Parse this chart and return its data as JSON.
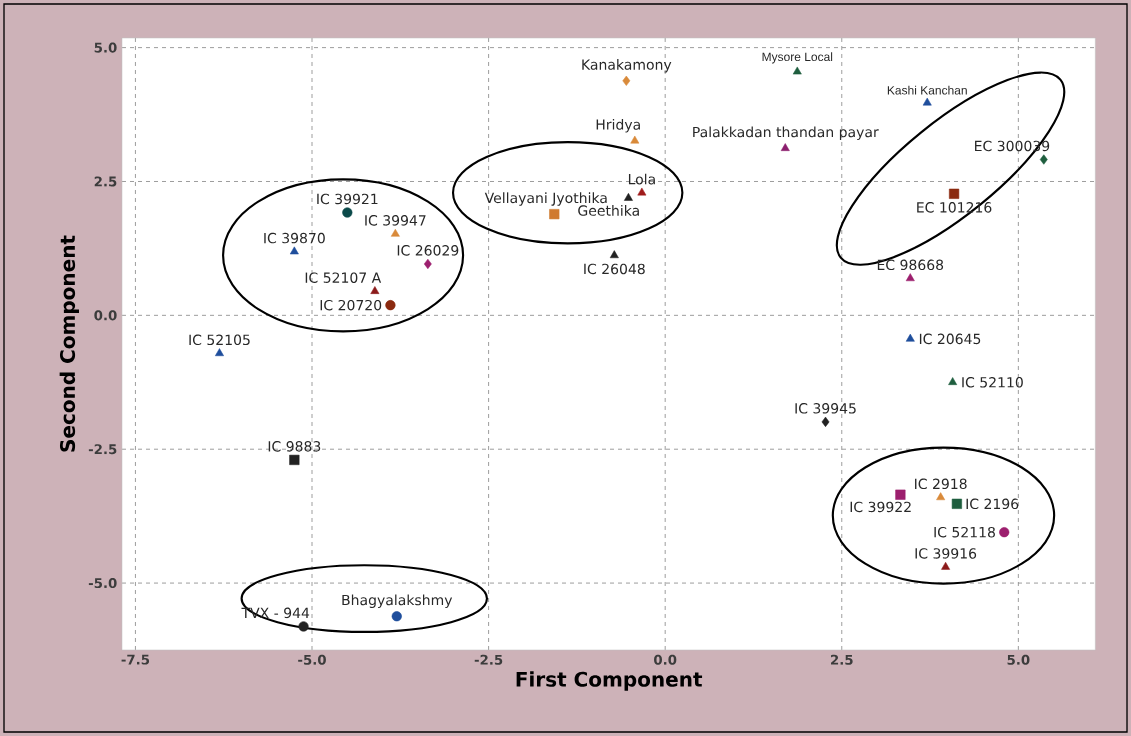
{
  "chart_data": {
    "type": "scatter",
    "xlabel": "First Component",
    "ylabel": "Second Component",
    "xlim": [
      -7.69,
      6.09
    ],
    "ylim": [
      -6.25,
      5.18
    ],
    "xticks": [
      {
        "value": -7.5,
        "label": "-7.5"
      },
      {
        "value": -5,
        "label": "-5.0"
      },
      {
        "value": -2.5,
        "label": "-2.5"
      },
      {
        "value": 0,
        "label": "0.0"
      },
      {
        "value": 2.5,
        "label": "2.5"
      },
      {
        "value": 5,
        "label": "5.0"
      }
    ],
    "yticks": [
      {
        "value": -5,
        "label": "-5.0"
      },
      {
        "value": -2.5,
        "label": "-2.5"
      },
      {
        "value": 0,
        "label": "0.0"
      },
      {
        "value": 2.5,
        "label": "2.5"
      },
      {
        "value": 5,
        "label": "5.0"
      }
    ],
    "grid": true,
    "series": [
      {
        "name": "Kanakamony",
        "x": [
          -0.55
        ],
        "values": [
          4.38
        ],
        "marker": "diamond",
        "color": "#d98a3a"
      },
      {
        "name": "Hridya",
        "x": [
          -0.43
        ],
        "values": [
          3.26
        ],
        "marker": "triangle",
        "color": "#d98a3a"
      },
      {
        "name": "Lola",
        "x": [
          -0.33
        ],
        "values": [
          2.29
        ],
        "marker": "triangle",
        "color": "#a01c1c"
      },
      {
        "name": "Geethika",
        "x": [
          -0.52
        ],
        "values": [
          2.19
        ],
        "marker": "triangle",
        "color": "#222222"
      },
      {
        "name": "Vellayani Jyothika",
        "x": [
          -1.57
        ],
        "values": [
          1.89
        ],
        "marker": "square",
        "color": "#d07a30"
      },
      {
        "name": "IC 26048",
        "x": [
          -0.72
        ],
        "values": [
          1.12
        ],
        "marker": "triangle",
        "color": "#222222"
      },
      {
        "name": "IC 39921",
        "x": [
          -4.5
        ],
        "values": [
          1.92
        ],
        "marker": "circle",
        "color": "#0b4a4a"
      },
      {
        "name": "IC 39947",
        "x": [
          -3.82
        ],
        "values": [
          1.52
        ],
        "marker": "triangle",
        "color": "#d98a3a"
      },
      {
        "name": "IC 39870",
        "x": [
          -5.25
        ],
        "values": [
          1.19
        ],
        "marker": "triangle",
        "color": "#1f4e9c"
      },
      {
        "name": "IC 26029",
        "x": [
          -3.36
        ],
        "values": [
          0.96
        ],
        "marker": "diamond",
        "color": "#9c1f6e"
      },
      {
        "name": "IC 52107 A",
        "x": [
          -4.11
        ],
        "values": [
          0.45
        ],
        "marker": "triangle",
        "color": "#8b1a1a"
      },
      {
        "name": "IC 20720",
        "x": [
          -3.89
        ],
        "values": [
          0.19
        ],
        "marker": "circle",
        "color": "#8b2a10"
      },
      {
        "name": "IC 52105",
        "x": [
          -6.31
        ],
        "values": [
          -0.71
        ],
        "marker": "triangle",
        "color": "#1f4e9c"
      },
      {
        "name": "IC 9883",
        "x": [
          -5.25
        ],
        "values": [
          -2.7
        ],
        "marker": "square",
        "color": "#222222"
      },
      {
        "name": "TVX - 944",
        "x": [
          -5.12
        ],
        "values": [
          -5.81
        ],
        "marker": "circle",
        "color": "#222222"
      },
      {
        "name": "Bhagyalakshmy",
        "x": [
          -3.8
        ],
        "values": [
          -5.62
        ],
        "marker": "circle",
        "color": "#1f4e9c"
      },
      {
        "name": "Mysore Local",
        "x": [
          1.87
        ],
        "values": [
          4.55
        ],
        "marker": "triangle",
        "color": "#1e5e3e"
      },
      {
        "name": "Kashi Kanchan",
        "x": [
          3.71
        ],
        "values": [
          3.97
        ],
        "marker": "triangle",
        "color": "#1f4e9c"
      },
      {
        "name": "Palakkadan thandan payar",
        "x": [
          1.7
        ],
        "values": [
          3.12
        ],
        "marker": "triangle",
        "color": "#8b1f6e"
      },
      {
        "name": "EC 300039",
        "x": [
          5.36
        ],
        "values": [
          2.91
        ],
        "marker": "diamond",
        "color": "#1e5e3e"
      },
      {
        "name": "EC 101216",
        "x": [
          4.09
        ],
        "values": [
          2.27
        ],
        "marker": "square",
        "color": "#8b2a10"
      },
      {
        "name": "EC 98668",
        "x": [
          3.47
        ],
        "values": [
          0.69
        ],
        "marker": "triangle",
        "color": "#9c1f6e"
      },
      {
        "name": "IC 20645",
        "x": [
          3.47
        ],
        "values": [
          -0.44
        ],
        "marker": "triangle",
        "color": "#1f4e9c"
      },
      {
        "name": "IC 52110",
        "x": [
          4.07
        ],
        "values": [
          -1.25
        ],
        "marker": "triangle",
        "color": "#1e5e3e"
      },
      {
        "name": "IC 39945",
        "x": [
          2.27
        ],
        "values": [
          -1.99
        ],
        "marker": "diamond",
        "color": "#222222"
      },
      {
        "name": "IC 39922",
        "x": [
          3.33
        ],
        "values": [
          -3.35
        ],
        "marker": "square",
        "color": "#9c1f6e"
      },
      {
        "name": "IC 2918",
        "x": [
          3.9
        ],
        "values": [
          -3.4
        ],
        "marker": "triangle",
        "color": "#d98a3a"
      },
      {
        "name": "IC 2196",
        "x": [
          4.13
        ],
        "values": [
          -3.52
        ],
        "marker": "square",
        "color": "#1e5e3e"
      },
      {
        "name": "IC 52118",
        "x": [
          4.8
        ],
        "values": [
          -4.05
        ],
        "marker": "circle",
        "color": "#9c1f6e"
      },
      {
        "name": "IC 39916",
        "x": [
          3.97
        ],
        "values": [
          -4.7
        ],
        "marker": "triangle",
        "color": "#8b1a1a"
      }
    ]
  }
}
